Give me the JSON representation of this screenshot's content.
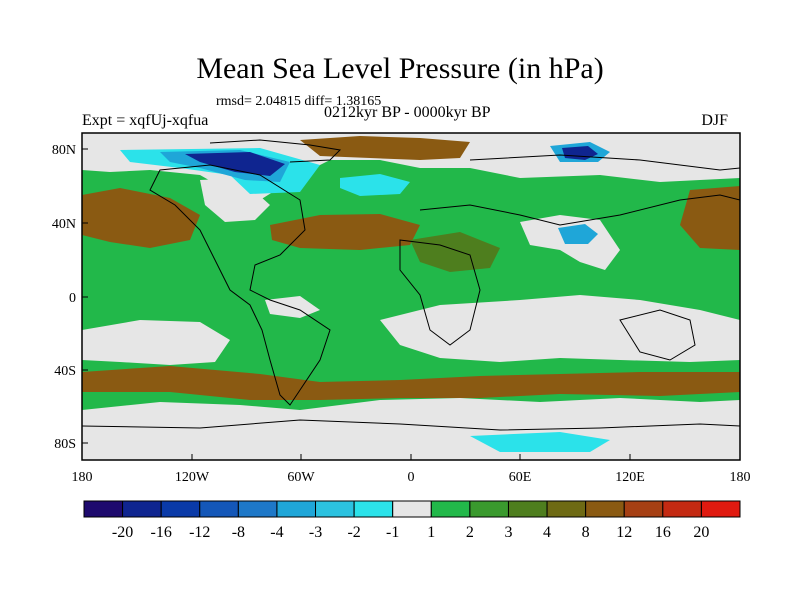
{
  "title": "Mean Sea Level Pressure (in hPa)",
  "stats": "rmsd= 2.04815 diff= 1.38165",
  "experiment": "Expt = xqfUj-xqfua",
  "period": "0212kyr BP - 0000kyr BP",
  "season": "DJF",
  "lat_labels": [
    "80N",
    "40N",
    "0",
    "40S",
    "80S"
  ],
  "lon_labels": [
    "180",
    "120W",
    "60W",
    "0",
    "60E",
    "120E",
    "180"
  ],
  "colorbar": {
    "labels": [
      "-20",
      "-16",
      "-12",
      "-8",
      "-4",
      "-3",
      "-2",
      "-1",
      "1",
      "2",
      "3",
      "4",
      "8",
      "12",
      "16",
      "20"
    ],
    "colors": [
      "#1e0a6e",
      "#0f2590",
      "#0a3aa8",
      "#1457b8",
      "#1e78c8",
      "#1fa6d8",
      "#2bc2e0",
      "#2be2ea",
      "#e6e6e6",
      "#22b84a",
      "#3a9a2e",
      "#4e7e1e",
      "#6e6a14",
      "#8a5a12",
      "#a64014",
      "#c42a12",
      "#e01a10"
    ]
  },
  "map_colors": {
    "ocean_base": "#22b84a",
    "neutral": "#e6e6e6",
    "brown": "#8a5a12",
    "olive": "#4e7e1e",
    "dark_green": "#3a9a2e",
    "light_blue": "#2be2ea",
    "mid_blue": "#1fa6d8",
    "dark_blue": "#0f2590"
  }
}
